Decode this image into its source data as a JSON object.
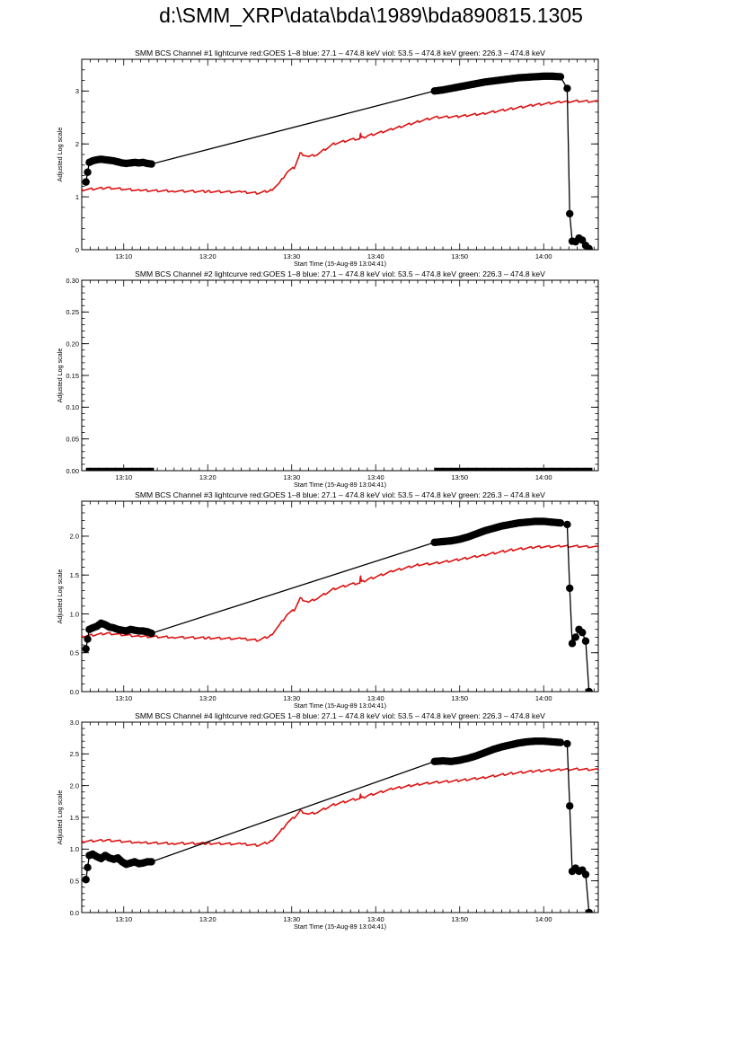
{
  "page": {
    "title": "d:\\SMM_XRP\\data\\bda\\1989\\bda890815.1305"
  },
  "colors": {
    "axis": "#000000",
    "goes": "#dd1111",
    "bcs": "#000000"
  },
  "chart_data": [
    {
      "type": "line",
      "title": "SMM BCS Channel #1 lightcurve  red:GOES 1–8  blue: 27.1 – 474.8 keV  viol: 53.5 – 474.8 keV  green: 226.3 – 474.8 keV",
      "xlabel": "Start Time (15-Aug-89 13:04:41)",
      "ylabel": "Adjusted Log scale",
      "xlim": [
        5.0,
        66.5
      ],
      "ylim": [
        0,
        3.6
      ],
      "xticks": [
        10,
        20,
        30,
        40,
        50,
        60
      ],
      "xticklabels": [
        "13:10",
        "13:20",
        "13:30",
        "13:40",
        "13:50",
        "14:00"
      ],
      "yticks": [
        0,
        1,
        2,
        3
      ],
      "yticklabels": [
        "0",
        "1",
        "2",
        "3"
      ],
      "grid": false,
      "series": [
        {
          "name": "GOES 1–8",
          "color": "#dd1111",
          "style": "line",
          "x": [
            5,
            8,
            12,
            16,
            20,
            24,
            26,
            27.5,
            28.5,
            29.5,
            30.3,
            31,
            32,
            33,
            35,
            37,
            38.1,
            38.2,
            38.3,
            39,
            42,
            45,
            47,
            50,
            53,
            56,
            59,
            62,
            64,
            66.5
          ],
          "y": [
            1.13,
            1.17,
            1.12,
            1.11,
            1.1,
            1.09,
            1.07,
            1.12,
            1.25,
            1.48,
            1.55,
            1.82,
            1.76,
            1.8,
            2.0,
            2.08,
            2.1,
            2.22,
            2.11,
            2.15,
            2.28,
            2.42,
            2.5,
            2.52,
            2.58,
            2.66,
            2.74,
            2.79,
            2.81,
            2.8
          ]
        },
        {
          "name": "BCS Channel #1",
          "color": "#000000",
          "style": "line-markers",
          "x": [
            5.5,
            5.9,
            6.3,
            6.8,
            7.3,
            7.8,
            8.3,
            8.8,
            9.3,
            9.8,
            10.3,
            10.8,
            11.3,
            11.8,
            12.3,
            12.8,
            13.3,
            47,
            48,
            49,
            50,
            51,
            52,
            53,
            54,
            55,
            56,
            57,
            58,
            59,
            60,
            61,
            62,
            62.8,
            63.1,
            63.4,
            63.8,
            64.2,
            64.6,
            65.0,
            65.4
          ],
          "y": [
            1.28,
            1.65,
            1.68,
            1.7,
            1.71,
            1.7,
            1.69,
            1.68,
            1.66,
            1.64,
            1.63,
            1.64,
            1.65,
            1.64,
            1.65,
            1.63,
            1.62,
            3.0,
            3.02,
            3.05,
            3.08,
            3.11,
            3.14,
            3.17,
            3.19,
            3.21,
            3.23,
            3.25,
            3.26,
            3.27,
            3.28,
            3.28,
            3.27,
            3.05,
            0.68,
            0.16,
            0.15,
            0.22,
            0.18,
            0.08,
            0.02
          ]
        }
      ]
    },
    {
      "type": "line",
      "title": "SMM BCS Channel #2 lightcurve  red:GOES 1–8  blue: 27.1 – 474.8 keV  viol: 53.5 – 474.8 keV  green: 226.3 – 474.8 keV",
      "xlabel": "Start Time (15-Aug-89 13:04:41)",
      "ylabel": "Adjusted Log scale",
      "xlim": [
        5.0,
        66.5
      ],
      "ylim": [
        0,
        0.3
      ],
      "xticks": [
        10,
        20,
        30,
        40,
        50,
        60
      ],
      "xticklabels": [
        "13:10",
        "13:20",
        "13:30",
        "13:40",
        "13:50",
        "14:00"
      ],
      "yticks": [
        0,
        0.05,
        0.1,
        0.15,
        0.2,
        0.25,
        0.3
      ],
      "yticklabels": [
        "0.00",
        "0.05",
        "0.10",
        "0.15",
        "0.20",
        "0.25",
        "0.30"
      ],
      "grid": false,
      "series": [
        {
          "name": "BCS Channel #2",
          "color": "#000000",
          "style": "thick-segments",
          "segments": [
            [
              5.5,
              13.6
            ],
            [
              47,
              65.8
            ]
          ],
          "y": [
            0,
            0
          ]
        }
      ]
    },
    {
      "type": "line",
      "title": "SMM BCS Channel #3 lightcurve  red:GOES 1–8  blue: 27.1 – 474.8 keV  viol: 53.5 – 474.8 keV  green: 226.3 – 474.8 keV",
      "xlabel": "Start Time (15-Aug-89 13:04:41)",
      "ylabel": "Adjusted Log scale",
      "xlim": [
        5.0,
        66.5
      ],
      "ylim": [
        0,
        2.45
      ],
      "xticks": [
        10,
        20,
        30,
        40,
        50,
        60
      ],
      "xticklabels": [
        "13:10",
        "13:20",
        "13:30",
        "13:40",
        "13:50",
        "14:00"
      ],
      "yticks": [
        0,
        0.5,
        1.0,
        1.5,
        2.0
      ],
      "yticklabels": [
        "0.0",
        "0.5",
        "1.0",
        "1.5",
        "2.0"
      ],
      "grid": false,
      "series": [
        {
          "name": "GOES 1–8",
          "color": "#dd1111",
          "style": "line",
          "x": [
            5,
            8,
            12,
            16,
            20,
            24,
            26,
            27.5,
            28.5,
            29.5,
            30.3,
            31,
            32,
            33,
            35,
            37,
            38.1,
            38.2,
            38.3,
            39,
            42,
            45,
            47,
            50,
            53,
            56,
            59,
            62,
            64,
            66.5
          ],
          "y": [
            0.71,
            0.75,
            0.71,
            0.7,
            0.69,
            0.68,
            0.66,
            0.72,
            0.85,
            1.0,
            1.05,
            1.2,
            1.15,
            1.2,
            1.32,
            1.38,
            1.4,
            1.5,
            1.41,
            1.44,
            1.55,
            1.63,
            1.65,
            1.7,
            1.76,
            1.82,
            1.86,
            1.87,
            1.87,
            1.86
          ]
        },
        {
          "name": "BCS Channel #3",
          "color": "#000000",
          "style": "line-markers",
          "x": [
            5.5,
            5.9,
            6.3,
            6.8,
            7.3,
            7.8,
            8.3,
            8.8,
            9.3,
            9.8,
            10.3,
            10.8,
            11.3,
            11.8,
            12.3,
            12.8,
            13.3,
            47,
            48,
            49,
            50,
            51,
            52,
            53,
            54,
            55,
            56,
            57,
            58,
            59,
            60,
            61,
            62,
            62.8,
            63.1,
            63.4,
            63.8,
            64.2,
            64.6,
            65.0,
            65.4
          ],
          "y": [
            0.55,
            0.8,
            0.82,
            0.84,
            0.88,
            0.86,
            0.83,
            0.82,
            0.8,
            0.79,
            0.78,
            0.8,
            0.79,
            0.78,
            0.78,
            0.77,
            0.75,
            1.92,
            1.93,
            1.94,
            1.96,
            1.99,
            2.03,
            2.07,
            2.1,
            2.13,
            2.15,
            2.17,
            2.18,
            2.19,
            2.19,
            2.18,
            2.17,
            2.15,
            1.33,
            0.62,
            0.7,
            0.8,
            0.76,
            0.65,
            0.0
          ]
        }
      ]
    },
    {
      "type": "line",
      "title": "SMM BCS Channel #4 lightcurve  red:GOES 1–8  blue: 27.1 – 474.8 keV  viol: 53.5 – 474.8 keV  green: 226.3 – 474.8 keV",
      "xlabel": "Start Time (15-Aug-89 13:04:41)",
      "ylabel": "Adjusted Log scale",
      "xlim": [
        5.0,
        66.5
      ],
      "ylim": [
        0,
        3.0
      ],
      "xticks": [
        10,
        20,
        30,
        40,
        50,
        60
      ],
      "xticklabels": [
        "13:10",
        "13:20",
        "13:30",
        "13:40",
        "13:50",
        "14:00"
      ],
      "yticks": [
        0,
        0.5,
        1.0,
        1.5,
        2.0,
        2.5,
        3.0
      ],
      "yticklabels": [
        "0.0",
        "0.5",
        "1.0",
        "1.5",
        "2.0",
        "2.5",
        "3.0"
      ],
      "grid": false,
      "series": [
        {
          "name": "GOES 1–8",
          "color": "#dd1111",
          "style": "line",
          "x": [
            5,
            8,
            12,
            16,
            20,
            24,
            26,
            27.5,
            28.5,
            29.5,
            30.3,
            31,
            32,
            33,
            35,
            37,
            38.1,
            38.2,
            38.3,
            39,
            42,
            45,
            47,
            50,
            53,
            56,
            59,
            62,
            64,
            66.5
          ],
          "y": [
            1.12,
            1.14,
            1.1,
            1.09,
            1.09,
            1.08,
            1.06,
            1.12,
            1.25,
            1.42,
            1.5,
            1.6,
            1.55,
            1.58,
            1.7,
            1.77,
            1.8,
            1.88,
            1.8,
            1.84,
            1.95,
            2.02,
            2.05,
            2.08,
            2.13,
            2.19,
            2.23,
            2.25,
            2.26,
            2.25
          ]
        },
        {
          "name": "BCS Channel #4",
          "color": "#000000",
          "style": "line-markers",
          "x": [
            5.5,
            5.9,
            6.3,
            6.8,
            7.3,
            7.8,
            8.3,
            8.8,
            9.3,
            9.8,
            10.3,
            10.8,
            11.3,
            11.8,
            12.3,
            12.8,
            13.3,
            47,
            48,
            49,
            50,
            51,
            52,
            53,
            54,
            55,
            56,
            57,
            58,
            59,
            60,
            61,
            62,
            62.8,
            63.1,
            63.4,
            63.8,
            64.2,
            64.6,
            65.0,
            65.4
          ],
          "y": [
            0.52,
            0.9,
            0.92,
            0.88,
            0.85,
            0.9,
            0.86,
            0.84,
            0.86,
            0.8,
            0.76,
            0.78,
            0.8,
            0.77,
            0.78,
            0.8,
            0.8,
            2.38,
            2.39,
            2.38,
            2.4,
            2.43,
            2.47,
            2.52,
            2.57,
            2.61,
            2.64,
            2.67,
            2.69,
            2.7,
            2.7,
            2.69,
            2.68,
            2.66,
            1.68,
            0.65,
            0.7,
            0.65,
            0.67,
            0.6,
            0.0
          ]
        }
      ]
    }
  ]
}
